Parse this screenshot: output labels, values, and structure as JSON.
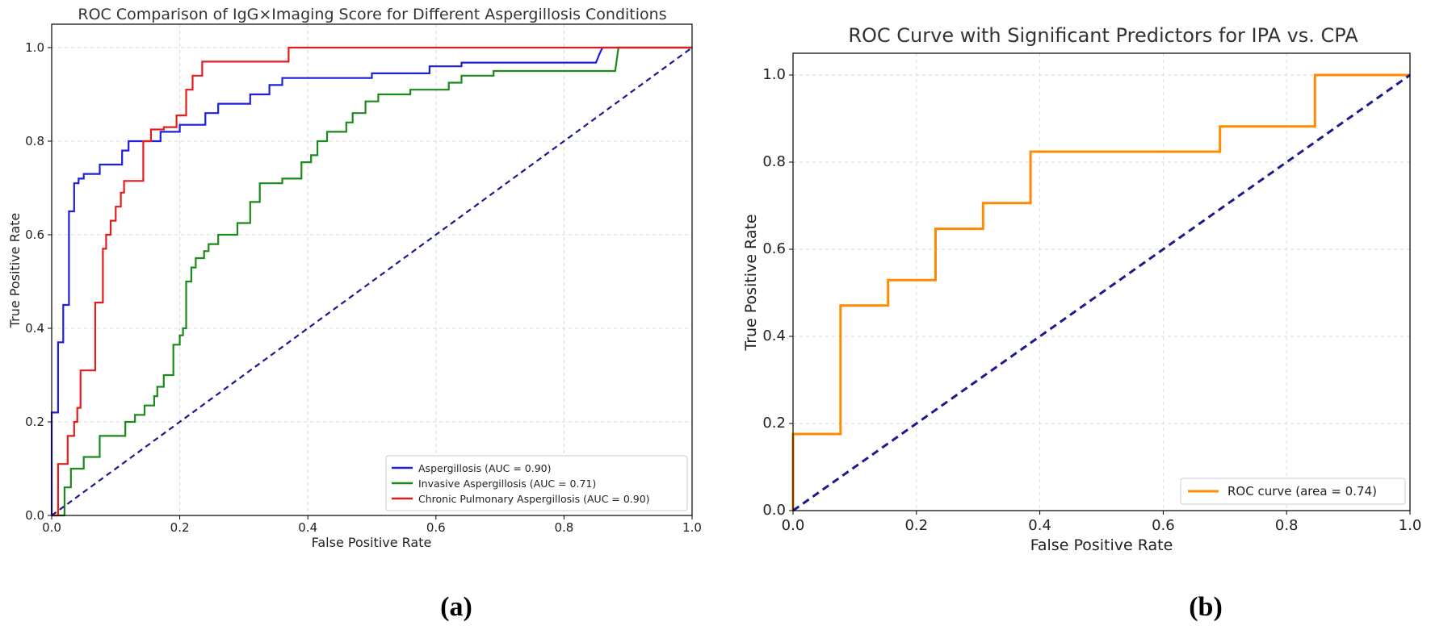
{
  "chart_data": [
    {
      "type": "line",
      "title": "ROC Comparison of IgG×Imaging Score for Different Aspergillosis Conditions",
      "xlabel": "False Positive Rate",
      "ylabel": "True Positive Rate",
      "xlim": [
        0,
        1
      ],
      "ylim": [
        0,
        1.05
      ],
      "x_ticks": [
        {
          "v": 0,
          "label": "0.0"
        },
        {
          "v": 0.2,
          "label": "0.2"
        },
        {
          "v": 0.4,
          "label": "0.4"
        },
        {
          "v": 0.6,
          "label": "0.6"
        },
        {
          "v": 0.8,
          "label": "0.8"
        },
        {
          "v": 1.0,
          "label": "1.0"
        }
      ],
      "y_ticks": [
        {
          "v": 0,
          "label": "0.0"
        },
        {
          "v": 0.2,
          "label": "0.2"
        },
        {
          "v": 0.4,
          "label": "0.4"
        },
        {
          "v": 0.6,
          "label": "0.6"
        },
        {
          "v": 0.8,
          "label": "0.8"
        },
        {
          "v": 1.0,
          "label": "1.0"
        }
      ],
      "grid": true,
      "legend_position": "bottom-right",
      "panel_label": "(a)",
      "series": [
        {
          "name": "Aspergillosis (AUC = 0.90)",
          "color": "#1f1fdb",
          "points": [
            [
              0,
              0
            ],
            [
              0,
              0.22
            ],
            [
              0.01,
              0.22
            ],
            [
              0.01,
              0.37
            ],
            [
              0.018,
              0.37
            ],
            [
              0.018,
              0.45
            ],
            [
              0.027,
              0.45
            ],
            [
              0.027,
              0.65
            ],
            [
              0.035,
              0.65
            ],
            [
              0.035,
              0.71
            ],
            [
              0.042,
              0.71
            ],
            [
              0.042,
              0.72
            ],
            [
              0.05,
              0.72
            ],
            [
              0.05,
              0.73
            ],
            [
              0.075,
              0.73
            ],
            [
              0.075,
              0.75
            ],
            [
              0.11,
              0.75
            ],
            [
              0.11,
              0.78
            ],
            [
              0.12,
              0.78
            ],
            [
              0.12,
              0.8
            ],
            [
              0.17,
              0.8
            ],
            [
              0.17,
              0.82
            ],
            [
              0.2,
              0.82
            ],
            [
              0.2,
              0.835
            ],
            [
              0.24,
              0.835
            ],
            [
              0.24,
              0.86
            ],
            [
              0.26,
              0.86
            ],
            [
              0.26,
              0.88
            ],
            [
              0.31,
              0.88
            ],
            [
              0.31,
              0.9
            ],
            [
              0.34,
              0.9
            ],
            [
              0.34,
              0.92
            ],
            [
              0.36,
              0.92
            ],
            [
              0.36,
              0.935
            ],
            [
              0.5,
              0.935
            ],
            [
              0.5,
              0.945
            ],
            [
              0.59,
              0.945
            ],
            [
              0.59,
              0.96
            ],
            [
              0.64,
              0.96
            ],
            [
              0.64,
              0.968
            ],
            [
              0.85,
              0.968
            ],
            [
              0.855,
              0.985
            ],
            [
              0.86,
              1.0
            ],
            [
              1.0,
              1.0
            ]
          ]
        },
        {
          "name": "Invasive Aspergillosis (AUC = 0.71)",
          "color": "#1a8a1a",
          "points": [
            [
              0,
              0
            ],
            [
              0.02,
              0
            ],
            [
              0.02,
              0.06
            ],
            [
              0.03,
              0.06
            ],
            [
              0.03,
              0.1
            ],
            [
              0.05,
              0.1
            ],
            [
              0.05,
              0.125
            ],
            [
              0.075,
              0.125
            ],
            [
              0.075,
              0.17
            ],
            [
              0.115,
              0.17
            ],
            [
              0.115,
              0.2
            ],
            [
              0.13,
              0.2
            ],
            [
              0.13,
              0.215
            ],
            [
              0.145,
              0.215
            ],
            [
              0.145,
              0.235
            ],
            [
              0.16,
              0.235
            ],
            [
              0.16,
              0.255
            ],
            [
              0.165,
              0.255
            ],
            [
              0.165,
              0.275
            ],
            [
              0.175,
              0.275
            ],
            [
              0.175,
              0.3
            ],
            [
              0.19,
              0.3
            ],
            [
              0.19,
              0.365
            ],
            [
              0.2,
              0.365
            ],
            [
              0.2,
              0.385
            ],
            [
              0.205,
              0.385
            ],
            [
              0.205,
              0.4
            ],
            [
              0.21,
              0.4
            ],
            [
              0.21,
              0.5
            ],
            [
              0.218,
              0.5
            ],
            [
              0.218,
              0.53
            ],
            [
              0.225,
              0.53
            ],
            [
              0.225,
              0.55
            ],
            [
              0.238,
              0.55
            ],
            [
              0.238,
              0.565
            ],
            [
              0.245,
              0.565
            ],
            [
              0.245,
              0.58
            ],
            [
              0.26,
              0.58
            ],
            [
              0.26,
              0.6
            ],
            [
              0.29,
              0.6
            ],
            [
              0.29,
              0.625
            ],
            [
              0.31,
              0.625
            ],
            [
              0.31,
              0.67
            ],
            [
              0.325,
              0.67
            ],
            [
              0.325,
              0.71
            ],
            [
              0.36,
              0.71
            ],
            [
              0.36,
              0.72
            ],
            [
              0.39,
              0.72
            ],
            [
              0.39,
              0.755
            ],
            [
              0.405,
              0.755
            ],
            [
              0.405,
              0.77
            ],
            [
              0.415,
              0.77
            ],
            [
              0.415,
              0.8
            ],
            [
              0.43,
              0.8
            ],
            [
              0.43,
              0.82
            ],
            [
              0.46,
              0.82
            ],
            [
              0.46,
              0.84
            ],
            [
              0.47,
              0.84
            ],
            [
              0.47,
              0.86
            ],
            [
              0.49,
              0.86
            ],
            [
              0.49,
              0.885
            ],
            [
              0.51,
              0.885
            ],
            [
              0.51,
              0.9
            ],
            [
              0.56,
              0.9
            ],
            [
              0.56,
              0.91
            ],
            [
              0.62,
              0.91
            ],
            [
              0.62,
              0.925
            ],
            [
              0.64,
              0.925
            ],
            [
              0.64,
              0.94
            ],
            [
              0.69,
              0.94
            ],
            [
              0.69,
              0.95
            ],
            [
              0.88,
              0.95
            ],
            [
              0.885,
              1.0
            ],
            [
              1.0,
              1.0
            ]
          ]
        },
        {
          "name": "Chronic Pulmonary Aspergillosis (AUC = 0.90)",
          "color": "#e51c1c",
          "points": [
            [
              0,
              0
            ],
            [
              0.01,
              0
            ],
            [
              0.01,
              0.11
            ],
            [
              0.025,
              0.11
            ],
            [
              0.025,
              0.17
            ],
            [
              0.035,
              0.17
            ],
            [
              0.035,
              0.2
            ],
            [
              0.04,
              0.2
            ],
            [
              0.04,
              0.23
            ],
            [
              0.045,
              0.23
            ],
            [
              0.045,
              0.31
            ],
            [
              0.068,
              0.31
            ],
            [
              0.068,
              0.455
            ],
            [
              0.08,
              0.455
            ],
            [
              0.08,
              0.57
            ],
            [
              0.085,
              0.57
            ],
            [
              0.085,
              0.6
            ],
            [
              0.092,
              0.6
            ],
            [
              0.092,
              0.63
            ],
            [
              0.1,
              0.63
            ],
            [
              0.1,
              0.66
            ],
            [
              0.108,
              0.66
            ],
            [
              0.108,
              0.69
            ],
            [
              0.113,
              0.69
            ],
            [
              0.113,
              0.715
            ],
            [
              0.143,
              0.715
            ],
            [
              0.143,
              0.8
            ],
            [
              0.148,
              0.8
            ],
            [
              0.148,
              0.8
            ],
            [
              0.155,
              0.8
            ],
            [
              0.155,
              0.825
            ],
            [
              0.175,
              0.825
            ],
            [
              0.175,
              0.83
            ],
            [
              0.195,
              0.83
            ],
            [
              0.195,
              0.855
            ],
            [
              0.21,
              0.855
            ],
            [
              0.21,
              0.91
            ],
            [
              0.22,
              0.91
            ],
            [
              0.22,
              0.94
            ],
            [
              0.235,
              0.94
            ],
            [
              0.235,
              0.97
            ],
            [
              0.37,
              0.97
            ],
            [
              0.37,
              1.0
            ],
            [
              1.0,
              1.0
            ]
          ]
        },
        {
          "name": "chance",
          "color": "#1a1a8c",
          "dashed": true,
          "points": [
            [
              0,
              0
            ],
            [
              1,
              1
            ]
          ]
        }
      ],
      "legend_entries": [
        "Aspergillosis (AUC = 0.90)",
        "Invasive Aspergillosis (AUC = 0.71)",
        "Chronic Pulmonary Aspergillosis (AUC = 0.90)"
      ]
    },
    {
      "type": "line",
      "title": "ROC Curve with Significant Predictors for IPA vs. CPA",
      "xlabel": "False Positive Rate",
      "ylabel": "True Positive Rate",
      "xlim": [
        0,
        1
      ],
      "ylim": [
        0,
        1.05
      ],
      "x_ticks": [
        {
          "v": 0,
          "label": "0.0"
        },
        {
          "v": 0.2,
          "label": "0.2"
        },
        {
          "v": 0.4,
          "label": "0.4"
        },
        {
          "v": 0.6,
          "label": "0.6"
        },
        {
          "v": 0.8,
          "label": "0.8"
        },
        {
          "v": 1.0,
          "label": "1.0"
        }
      ],
      "y_ticks": [
        {
          "v": 0,
          "label": "0.0"
        },
        {
          "v": 0.2,
          "label": "0.2"
        },
        {
          "v": 0.4,
          "label": "0.4"
        },
        {
          "v": 0.6,
          "label": "0.6"
        },
        {
          "v": 0.8,
          "label": "0.8"
        },
        {
          "v": 1.0,
          "label": "1.0"
        }
      ],
      "grid": true,
      "legend_position": "bottom-right",
      "panel_label": "(b)",
      "series": [
        {
          "name": "ROC curve (area = 0.74)",
          "color": "#ff8c00",
          "points": [
            [
              0,
              0
            ],
            [
              0,
              0.176
            ],
            [
              0.077,
              0.176
            ],
            [
              0.077,
              0.471
            ],
            [
              0.154,
              0.471
            ],
            [
              0.154,
              0.529
            ],
            [
              0.231,
              0.529
            ],
            [
              0.231,
              0.647
            ],
            [
              0.308,
              0.647
            ],
            [
              0.308,
              0.706
            ],
            [
              0.385,
              0.706
            ],
            [
              0.385,
              0.824
            ],
            [
              0.692,
              0.824
            ],
            [
              0.692,
              0.882
            ],
            [
              0.846,
              0.882
            ],
            [
              0.846,
              1.0
            ],
            [
              1.0,
              1.0
            ]
          ]
        },
        {
          "name": "chance",
          "color": "#1a1a8c",
          "dashed": true,
          "points": [
            [
              0,
              0
            ],
            [
              1,
              1
            ]
          ]
        }
      ],
      "legend_entries": [
        "ROC curve (area = 0.74)"
      ]
    }
  ]
}
